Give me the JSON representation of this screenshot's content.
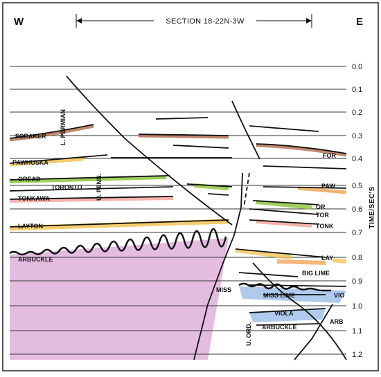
{
  "header": {
    "west": "W",
    "east": "E",
    "section": "SECTION 18-22N-3W"
  },
  "time_axis": {
    "label": "TIME/SEC'S",
    "ticks": [
      "0.0",
      "0.1",
      "0.2",
      "0.3",
      "0.4",
      "0.5",
      "0.6",
      "0.7",
      "0.8",
      "0.9",
      "1.0",
      "1.1",
      "1.2"
    ]
  },
  "labels_west": {
    "foraker": "FORAKER",
    "pawhuska": "PAWHUSKA",
    "oread": "OREAD",
    "toronto": "TORONTO",
    "tonkawa": "TONKAWA",
    "layton": "LAYTON",
    "arbuckle": "ARBUCKLE"
  },
  "labels_east": {
    "for": "FOR",
    "paw": "PAW",
    "or": "OR",
    "tor": "TOR",
    "tonk": "TONK",
    "lay": "LAY",
    "big_lime": "BIG LIME",
    "miss": "MISS",
    "miss_lime": "MISS LIME",
    "vio": "VIO",
    "viola": "VIOLA",
    "arb": "ARB",
    "arbuckle": "ARBUCKLE"
  },
  "vertical_labels": {
    "l_permian": "L. PERMIAN",
    "u_penn": "U. PENN.",
    "u_ord": "U. ORD."
  },
  "colors": {
    "brown": "#b06a4a",
    "green": "#8cc63f",
    "pink": "#f4a6a0",
    "yellow": "#f2c14e",
    "orange": "#f0a050",
    "blue": "#7aa7e0",
    "purple": "#d9a6d6"
  }
}
